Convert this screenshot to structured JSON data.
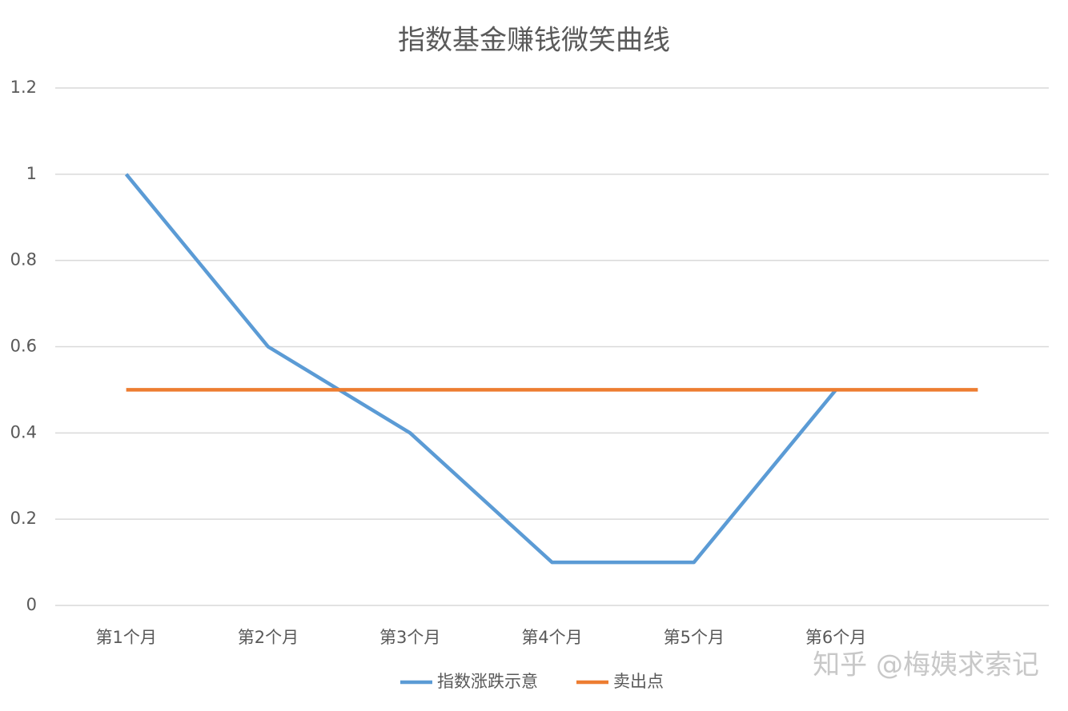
{
  "chart_data": {
    "type": "line",
    "title": "指数基金赚钱微笑曲线",
    "categories": [
      "第1个月",
      "第2个月",
      "第3个月",
      "第4个月",
      "第5个月",
      "第6个月",
      null
    ],
    "series": [
      {
        "name": "指数涨跌示意",
        "color": "#5b9bd5",
        "values": [
          1,
          0.6,
          0.4,
          0.1,
          0.1,
          0.5,
          null
        ]
      },
      {
        "name": "卖出点",
        "color": "#ed7d31",
        "values": [
          0.5,
          0.5,
          0.5,
          0.5,
          0.5,
          0.5,
          0.5
        ]
      }
    ],
    "ylim": [
      0,
      1.2
    ],
    "yticks": [
      0,
      0.2,
      0.4,
      0.6,
      0.8,
      1,
      1.2
    ],
    "grid": true,
    "legend": "bottom",
    "watermark": "知乎 @梅姨求索记"
  }
}
